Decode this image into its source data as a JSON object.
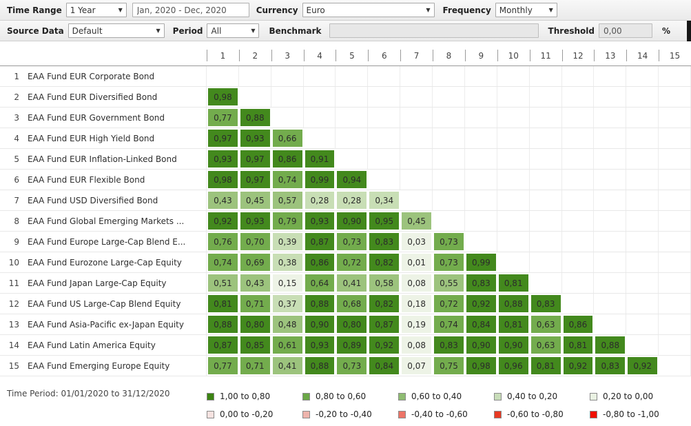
{
  "toolbar_primary": {
    "time_range": {
      "label": "Time Range",
      "value": "1 Year"
    },
    "date_range": {
      "value": "Jan, 2020 - Dec, 2020"
    },
    "currency": {
      "label": "Currency",
      "value": "Euro"
    },
    "frequency": {
      "label": "Frequency",
      "value": "Monthly"
    }
  },
  "toolbar_secondary": {
    "source_data": {
      "label": "Source Data",
      "value": "Default"
    },
    "period": {
      "label": "Period",
      "value": "All"
    },
    "benchmark": {
      "label": "Benchmark",
      "value": ""
    },
    "threshold": {
      "label": "Threshold",
      "value": "0,00",
      "unit": "%"
    }
  },
  "matrix": {
    "column_headers": [
      "1",
      "2",
      "3",
      "4",
      "5",
      "6",
      "7",
      "8",
      "9",
      "10",
      "11",
      "12",
      "13",
      "14",
      "15"
    ],
    "rows": [
      {
        "num": "1",
        "name": "EAA Fund EUR Corporate Bond",
        "values": []
      },
      {
        "num": "2",
        "name": "EAA Fund EUR Diversified Bond",
        "values": [
          "0,98"
        ]
      },
      {
        "num": "3",
        "name": "EAA Fund EUR Government Bond",
        "values": [
          "0,77",
          "0,88"
        ]
      },
      {
        "num": "4",
        "name": "EAA Fund EUR High Yield Bond",
        "values": [
          "0,97",
          "0,93",
          "0,66"
        ]
      },
      {
        "num": "5",
        "name": "EAA Fund EUR Inflation-Linked Bond",
        "values": [
          "0,93",
          "0,97",
          "0,86",
          "0,91"
        ]
      },
      {
        "num": "6",
        "name": "EAA Fund EUR Flexible Bond",
        "values": [
          "0,98",
          "0,97",
          "0,74",
          "0,99",
          "0,94"
        ]
      },
      {
        "num": "7",
        "name": "EAA Fund USD Diversified Bond",
        "values": [
          "0,43",
          "0,45",
          "0,57",
          "0,28",
          "0,28",
          "0,34"
        ]
      },
      {
        "num": "8",
        "name": "EAA Fund Global Emerging Markets ...",
        "values": [
          "0,92",
          "0,93",
          "0,79",
          "0,93",
          "0,90",
          "0,95",
          "0,45"
        ]
      },
      {
        "num": "9",
        "name": "EAA Fund Europe Large-Cap Blend E...",
        "values": [
          "0,76",
          "0,70",
          "0,39",
          "0,87",
          "0,73",
          "0,83",
          "0,03",
          "0,73"
        ]
      },
      {
        "num": "10",
        "name": "EAA Fund Eurozone Large-Cap Equity",
        "values": [
          "0,74",
          "0,69",
          "0,38",
          "0,86",
          "0,72",
          "0,82",
          "0,01",
          "0,73",
          "0,99"
        ]
      },
      {
        "num": "11",
        "name": "EAA Fund Japan Large-Cap Equity",
        "values": [
          "0,51",
          "0,43",
          "0,15",
          "0,64",
          "0,41",
          "0,58",
          "0,08",
          "0,55",
          "0,83",
          "0,81"
        ]
      },
      {
        "num": "12",
        "name": "EAA Fund US Large-Cap Blend Equity",
        "values": [
          "0,81",
          "0,71",
          "0,37",
          "0,88",
          "0,68",
          "0,82",
          "0,18",
          "0,72",
          "0,92",
          "0,88",
          "0,83"
        ]
      },
      {
        "num": "13",
        "name": "EAA Fund Asia-Pacific ex-Japan Equity",
        "values": [
          "0,88",
          "0,80",
          "0,48",
          "0,90",
          "0,80",
          "0,87",
          "0,19",
          "0,74",
          "0,84",
          "0,81",
          "0,63",
          "0,86"
        ]
      },
      {
        "num": "14",
        "name": "EAA Fund Latin America Equity",
        "values": [
          "0,87",
          "0,85",
          "0,61",
          "0,93",
          "0,89",
          "0,92",
          "0,08",
          "0,83",
          "0,90",
          "0,90",
          "0,63",
          "0,81",
          "0,88"
        ]
      },
      {
        "num": "15",
        "name": "EAA Fund Emerging Europe Equity",
        "values": [
          "0,77",
          "0,71",
          "0,41",
          "0,88",
          "0,73",
          "0,84",
          "0,07",
          "0,75",
          "0,98",
          "0,96",
          "0,81",
          "0,92",
          "0,83",
          "0,92"
        ]
      }
    ],
    "cell_colors": {
      "pos_80_100": "#43891d",
      "pos_60_80": "#73ac4d",
      "pos_40_60": "#9cc37d",
      "pos_20_40": "#c8deb5",
      "pos_00_20": "#edf3e6"
    }
  },
  "legend": {
    "time_period": "Time Period: 01/01/2020 to 31/12/2020",
    "items": [
      {
        "label": "1,00 to 0,80",
        "color": "#3c8413"
      },
      {
        "label": "0,80 to 0,60",
        "color": "#6ba747"
      },
      {
        "label": "0,60 to 0,40",
        "color": "#8fbc72"
      },
      {
        "label": "0,40 to 0,20",
        "color": "#c8ddb9"
      },
      {
        "label": "0,20 to 0,00",
        "color": "#eaf2e3"
      },
      {
        "label": "0,00 to -0,20",
        "color": "#f6e3e1"
      },
      {
        "label": "-0,20 to -0,40",
        "color": "#eeb4ac"
      },
      {
        "label": "-0,40 to -0,60",
        "color": "#ed7467"
      },
      {
        "label": "-0,60 to -0,80",
        "color": "#e83a24"
      },
      {
        "label": "-0,80 to -1,00",
        "color": "#f01000"
      }
    ]
  }
}
